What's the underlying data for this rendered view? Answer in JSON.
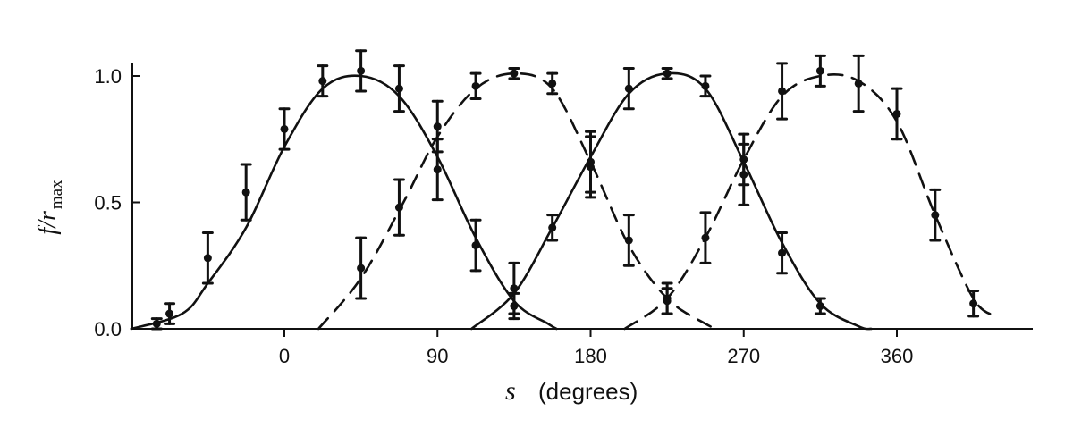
{
  "chart_data": {
    "type": "line",
    "xlabel": {
      "variable": "s",
      "unit": "(degrees)"
    },
    "ylabel": {
      "main": "f/r",
      "subscript": "max"
    },
    "xlim": [
      -90,
      440
    ],
    "ylim": [
      0,
      1.1
    ],
    "x_ticks": [
      {
        "value": 0,
        "label": "0"
      },
      {
        "value": 90,
        "label": "90"
      },
      {
        "value": 180,
        "label": "180"
      },
      {
        "value": 270,
        "label": "270"
      },
      {
        "value": 360,
        "label": "360"
      }
    ],
    "y_ticks": [
      {
        "value": 0,
        "label": "0.0"
      },
      {
        "value": 0.5,
        "label": "0.5"
      },
      {
        "value": 1,
        "label": "1.0"
      }
    ],
    "grid": false,
    "series": [
      {
        "line_style": "solid",
        "curve": [
          [
            -90,
            0
          ],
          [
            -60,
            0.06
          ],
          [
            -45,
            0.18
          ],
          [
            -22.5,
            0.4
          ],
          [
            0,
            0.72
          ],
          [
            22.5,
            0.95
          ],
          [
            45,
            1.0
          ],
          [
            67.5,
            0.92
          ],
          [
            90,
            0.68
          ],
          [
            112.5,
            0.36
          ],
          [
            135,
            0.11
          ],
          [
            155,
            0.02
          ],
          [
            160,
            0
          ]
        ],
        "points": [
          {
            "x": -75,
            "y": 0.02,
            "err": 0.02
          },
          {
            "x": -67.5,
            "y": 0.06,
            "err": 0.04
          },
          {
            "x": -45,
            "y": 0.28,
            "err": 0.1
          },
          {
            "x": -22.5,
            "y": 0.54,
            "err": 0.11
          },
          {
            "x": 0,
            "y": 0.79,
            "err": 0.08
          },
          {
            "x": 22.5,
            "y": 0.98,
            "err": 0.06
          },
          {
            "x": 45,
            "y": 1.02,
            "err": 0.08
          },
          {
            "x": 67.5,
            "y": 0.95,
            "err": 0.09
          },
          {
            "x": 90,
            "y": 0.63,
            "err": 0.12
          },
          {
            "x": 112.5,
            "y": 0.33,
            "err": 0.1
          },
          {
            "x": 135,
            "y": 0.09,
            "err": 0.05
          }
        ]
      },
      {
        "line_style": "dashed",
        "curve": [
          [
            20,
            0
          ],
          [
            45,
            0.2
          ],
          [
            70,
            0.5
          ],
          [
            90,
            0.76
          ],
          [
            112.5,
            0.95
          ],
          [
            135,
            1.01
          ],
          [
            157.5,
            0.95
          ],
          [
            180,
            0.66
          ],
          [
            202.5,
            0.33
          ],
          [
            225,
            0.12
          ],
          [
            247.5,
            0.02
          ],
          [
            255,
            0
          ]
        ],
        "points": [
          {
            "x": 45,
            "y": 0.24,
            "err": 0.12
          },
          {
            "x": 67.5,
            "y": 0.48,
            "err": 0.11
          },
          {
            "x": 90,
            "y": 0.8,
            "err": 0.1
          },
          {
            "x": 112.5,
            "y": 0.96,
            "err": 0.05
          },
          {
            "x": 135,
            "y": 1.01,
            "err": 0.02
          },
          {
            "x": 157.5,
            "y": 0.97,
            "err": 0.04
          },
          {
            "x": 180,
            "y": 0.66,
            "err": 0.12
          },
          {
            "x": 202.5,
            "y": 0.35,
            "err": 0.1
          },
          {
            "x": 225,
            "y": 0.11,
            "err": 0.05
          }
        ]
      },
      {
        "line_style": "solid",
        "curve": [
          [
            110,
            0
          ],
          [
            135,
            0.14
          ],
          [
            157.5,
            0.4
          ],
          [
            180,
            0.68
          ],
          [
            202.5,
            0.93
          ],
          [
            225,
            1.01
          ],
          [
            247.5,
            0.95
          ],
          [
            270,
            0.66
          ],
          [
            292.5,
            0.34
          ],
          [
            315,
            0.1
          ],
          [
            337.5,
            0.01
          ],
          [
            345,
            0
          ]
        ],
        "points": [
          {
            "x": 135,
            "y": 0.16,
            "err": 0.1
          },
          {
            "x": 157.5,
            "y": 0.4,
            "err": 0.05
          },
          {
            "x": 180,
            "y": 0.64,
            "err": 0.12
          },
          {
            "x": 202.5,
            "y": 0.95,
            "err": 0.08
          },
          {
            "x": 225,
            "y": 1.01,
            "err": 0.02
          },
          {
            "x": 247.5,
            "y": 0.96,
            "err": 0.04
          },
          {
            "x": 270,
            "y": 0.67,
            "err": 0.1
          },
          {
            "x": 292.5,
            "y": 0.3,
            "err": 0.08
          },
          {
            "x": 315,
            "y": 0.09,
            "err": 0.03
          }
        ]
      },
      {
        "line_style": "dashed",
        "curve": [
          [
            200,
            0
          ],
          [
            225,
            0.12
          ],
          [
            247.5,
            0.36
          ],
          [
            270,
            0.67
          ],
          [
            292.5,
            0.92
          ],
          [
            315,
            1.0
          ],
          [
            337.5,
            0.98
          ],
          [
            360,
            0.82
          ],
          [
            382.5,
            0.45
          ],
          [
            405,
            0.12
          ],
          [
            418,
            0.05
          ]
        ],
        "points": [
          {
            "x": 225,
            "y": 0.12,
            "err": 0.06
          },
          {
            "x": 247.5,
            "y": 0.36,
            "err": 0.1
          },
          {
            "x": 270,
            "y": 0.61,
            "err": 0.12
          },
          {
            "x": 292.5,
            "y": 0.94,
            "err": 0.11
          },
          {
            "x": 315,
            "y": 1.02,
            "err": 0.06
          },
          {
            "x": 337.5,
            "y": 0.97,
            "err": 0.11
          },
          {
            "x": 360,
            "y": 0.85,
            "err": 0.1
          },
          {
            "x": 382.5,
            "y": 0.45,
            "err": 0.1
          },
          {
            "x": 405,
            "y": 0.1,
            "err": 0.05
          }
        ]
      }
    ]
  }
}
